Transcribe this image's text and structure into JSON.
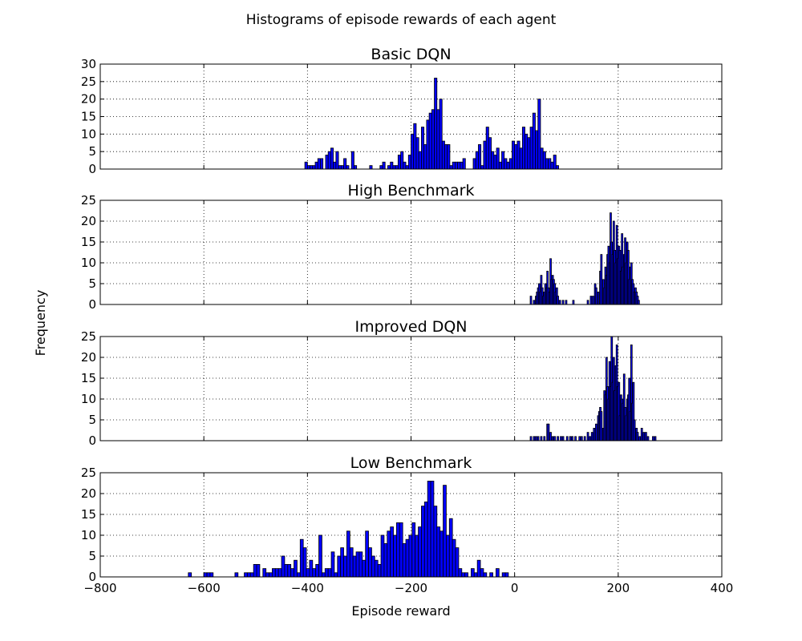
{
  "chart_data": {
    "type": "bar",
    "title": "Histograms of episode rewards of each agent",
    "xlabel": "Episode reward",
    "ylabel": "Frequency",
    "xlim": [
      -800,
      400
    ],
    "xticks": [
      "−800",
      "−600",
      "−400",
      "−200",
      "0",
      "200",
      "400"
    ],
    "xtick_values": [
      -800,
      -600,
      -400,
      -200,
      0,
      200,
      400
    ],
    "grid": true,
    "bar_color": "#0000ff",
    "subplots": [
      {
        "title": "Basic DQN",
        "ylim": [
          0,
          30
        ],
        "yticks": [
          "0",
          "5",
          "10",
          "15",
          "20",
          "25",
          "30"
        ],
        "ytick_values": [
          0,
          5,
          10,
          15,
          20,
          25,
          30
        ],
        "bin_width": 5,
        "color": "#0000ff",
        "bars": [
          [
            -405,
            2
          ],
          [
            -400,
            1
          ],
          [
            -395,
            1
          ],
          [
            -390,
            1
          ],
          [
            -385,
            2
          ],
          [
            -380,
            3
          ],
          [
            -375,
            3
          ],
          [
            -365,
            4
          ],
          [
            -360,
            5
          ],
          [
            -355,
            6
          ],
          [
            -350,
            2
          ],
          [
            -345,
            5
          ],
          [
            -340,
            1
          ],
          [
            -335,
            1
          ],
          [
            -330,
            3
          ],
          [
            -325,
            1
          ],
          [
            -315,
            5
          ],
          [
            -310,
            1
          ],
          [
            -280,
            1
          ],
          [
            -260,
            1
          ],
          [
            -255,
            2
          ],
          [
            -245,
            1
          ],
          [
            -240,
            2
          ],
          [
            -235,
            1
          ],
          [
            -230,
            1
          ],
          [
            -225,
            4
          ],
          [
            -220,
            5
          ],
          [
            -215,
            2
          ],
          [
            -210,
            1
          ],
          [
            -205,
            4
          ],
          [
            -200,
            10
          ],
          [
            -195,
            13
          ],
          [
            -190,
            9
          ],
          [
            -185,
            5
          ],
          [
            -180,
            12
          ],
          [
            -175,
            7
          ],
          [
            -170,
            14
          ],
          [
            -165,
            16
          ],
          [
            -160,
            17
          ],
          [
            -155,
            26
          ],
          [
            -150,
            17
          ],
          [
            -145,
            20
          ],
          [
            -140,
            8
          ],
          [
            -135,
            7
          ],
          [
            -130,
            7
          ],
          [
            -125,
            1
          ],
          [
            -120,
            2
          ],
          [
            -115,
            2
          ],
          [
            -110,
            2
          ],
          [
            -105,
            2
          ],
          [
            -100,
            3
          ],
          [
            -80,
            3
          ],
          [
            -75,
            5
          ],
          [
            -70,
            7
          ],
          [
            -65,
            1
          ],
          [
            -60,
            8
          ],
          [
            -55,
            12
          ],
          [
            -50,
            9
          ],
          [
            -45,
            5
          ],
          [
            -40,
            4
          ],
          [
            -35,
            6
          ],
          [
            -30,
            2
          ],
          [
            -25,
            5
          ],
          [
            -20,
            3
          ],
          [
            -15,
            2
          ],
          [
            -10,
            3
          ],
          [
            -5,
            8
          ],
          [
            0,
            7
          ],
          [
            5,
            8
          ],
          [
            10,
            6
          ],
          [
            15,
            12
          ],
          [
            20,
            10
          ],
          [
            25,
            9
          ],
          [
            30,
            12
          ],
          [
            35,
            16
          ],
          [
            40,
            11
          ],
          [
            45,
            20
          ],
          [
            50,
            6
          ],
          [
            55,
            5
          ],
          [
            60,
            3
          ],
          [
            65,
            3
          ],
          [
            70,
            2
          ],
          [
            75,
            4
          ],
          [
            80,
            1
          ]
        ]
      },
      {
        "title": "High Benchmark",
        "ylim": [
          0,
          25
        ],
        "yticks": [
          "0",
          "5",
          "10",
          "15",
          "20",
          "25"
        ],
        "ytick_values": [
          0,
          5,
          10,
          15,
          20,
          25
        ],
        "bin_width": 3,
        "color": "#0000ff",
        "bars": [
          [
            30,
            2
          ],
          [
            36,
            1
          ],
          [
            40,
            2
          ],
          [
            42,
            3
          ],
          [
            44,
            4
          ],
          [
            46,
            5
          ],
          [
            48,
            3
          ],
          [
            50,
            7
          ],
          [
            52,
            4
          ],
          [
            54,
            2
          ],
          [
            56,
            3
          ],
          [
            58,
            5
          ],
          [
            60,
            4
          ],
          [
            62,
            8
          ],
          [
            64,
            4
          ],
          [
            66,
            3
          ],
          [
            68,
            11
          ],
          [
            70,
            6
          ],
          [
            72,
            7
          ],
          [
            74,
            6
          ],
          [
            76,
            5
          ],
          [
            78,
            3
          ],
          [
            80,
            4
          ],
          [
            82,
            2
          ],
          [
            86,
            1
          ],
          [
            92,
            1
          ],
          [
            98,
            1
          ],
          [
            112,
            1
          ],
          [
            140,
            1
          ],
          [
            146,
            2
          ],
          [
            150,
            2
          ],
          [
            154,
            5
          ],
          [
            156,
            4
          ],
          [
            160,
            3
          ],
          [
            164,
            8
          ],
          [
            166,
            12
          ],
          [
            170,
            6
          ],
          [
            172,
            4
          ],
          [
            174,
            9
          ],
          [
            176,
            7
          ],
          [
            178,
            12
          ],
          [
            180,
            14
          ],
          [
            182,
            10
          ],
          [
            184,
            22
          ],
          [
            186,
            15
          ],
          [
            188,
            12
          ],
          [
            190,
            20
          ],
          [
            192,
            13
          ],
          [
            194,
            10
          ],
          [
            196,
            19
          ],
          [
            198,
            11
          ],
          [
            200,
            14
          ],
          [
            202,
            13
          ],
          [
            204,
            8
          ],
          [
            206,
            17
          ],
          [
            208,
            9
          ],
          [
            210,
            12
          ],
          [
            212,
            16
          ],
          [
            214,
            10
          ],
          [
            216,
            15
          ],
          [
            218,
            13
          ],
          [
            220,
            6
          ],
          [
            222,
            9
          ],
          [
            224,
            10
          ],
          [
            226,
            6
          ],
          [
            228,
            5
          ],
          [
            230,
            3
          ],
          [
            232,
            4
          ],
          [
            234,
            3
          ],
          [
            236,
            2
          ],
          [
            238,
            1
          ]
        ]
      },
      {
        "title": "Improved DQN",
        "ylim": [
          0,
          25
        ],
        "yticks": [
          "0",
          "5",
          "10",
          "15",
          "20",
          "25"
        ],
        "ytick_values": [
          0,
          5,
          10,
          15,
          20,
          25
        ],
        "bin_width": 3,
        "color": "#0000ff",
        "bars": [
          [
            30,
            1
          ],
          [
            36,
            1
          ],
          [
            40,
            1
          ],
          [
            44,
            1
          ],
          [
            50,
            1
          ],
          [
            56,
            1
          ],
          [
            62,
            4
          ],
          [
            64,
            4
          ],
          [
            68,
            2
          ],
          [
            72,
            1
          ],
          [
            76,
            1
          ],
          [
            82,
            1
          ],
          [
            88,
            1
          ],
          [
            92,
            1
          ],
          [
            100,
            1
          ],
          [
            106,
            1
          ],
          [
            110,
            1
          ],
          [
            116,
            1
          ],
          [
            124,
            1
          ],
          [
            128,
            1
          ],
          [
            134,
            1
          ],
          [
            140,
            2
          ],
          [
            144,
            1
          ],
          [
            148,
            2
          ],
          [
            152,
            3
          ],
          [
            156,
            4
          ],
          [
            160,
            6
          ],
          [
            162,
            7
          ],
          [
            164,
            8
          ],
          [
            166,
            7
          ],
          [
            170,
            3
          ],
          [
            172,
            12
          ],
          [
            174,
            11
          ],
          [
            176,
            20
          ],
          [
            178,
            13
          ],
          [
            180,
            10
          ],
          [
            182,
            19
          ],
          [
            184,
            13
          ],
          [
            186,
            25
          ],
          [
            188,
            14
          ],
          [
            190,
            20
          ],
          [
            192,
            12
          ],
          [
            194,
            18
          ],
          [
            196,
            23
          ],
          [
            198,
            13
          ],
          [
            200,
            14
          ],
          [
            202,
            6
          ],
          [
            204,
            11
          ],
          [
            206,
            10
          ],
          [
            208,
            9
          ],
          [
            210,
            16
          ],
          [
            212,
            8
          ],
          [
            214,
            6
          ],
          [
            216,
            10
          ],
          [
            218,
            11
          ],
          [
            220,
            15
          ],
          [
            222,
            7
          ],
          [
            224,
            23
          ],
          [
            226,
            9
          ],
          [
            228,
            14
          ],
          [
            230,
            5
          ],
          [
            234,
            3
          ],
          [
            236,
            2
          ],
          [
            240,
            1
          ],
          [
            244,
            3
          ],
          [
            248,
            2
          ],
          [
            252,
            2
          ],
          [
            256,
            1
          ],
          [
            266,
            1
          ],
          [
            270,
            1
          ]
        ]
      },
      {
        "title": "Low Benchmark",
        "ylim": [
          0,
          25
        ],
        "yticks": [
          "0",
          "5",
          "10",
          "15",
          "20",
          "25"
        ],
        "ytick_values": [
          0,
          5,
          10,
          15,
          20,
          25
        ],
        "bin_width": 6,
        "color": "#0000ff",
        "bars": [
          [
            -630,
            1
          ],
          [
            -600,
            1
          ],
          [
            -594,
            1
          ],
          [
            -588,
            1
          ],
          [
            -540,
            1
          ],
          [
            -522,
            1
          ],
          [
            -516,
            1
          ],
          [
            -510,
            1
          ],
          [
            -504,
            3
          ],
          [
            -498,
            3
          ],
          [
            -486,
            2
          ],
          [
            -480,
            1
          ],
          [
            -474,
            1
          ],
          [
            -468,
            2
          ],
          [
            -462,
            2
          ],
          [
            -456,
            2
          ],
          [
            -450,
            5
          ],
          [
            -444,
            3
          ],
          [
            -438,
            3
          ],
          [
            -432,
            2
          ],
          [
            -426,
            4
          ],
          [
            -420,
            1
          ],
          [
            -414,
            9
          ],
          [
            -408,
            7
          ],
          [
            -402,
            2
          ],
          [
            -396,
            4
          ],
          [
            -390,
            2
          ],
          [
            -384,
            3
          ],
          [
            -378,
            10
          ],
          [
            -372,
            1
          ],
          [
            -366,
            2
          ],
          [
            -360,
            2
          ],
          [
            -354,
            6
          ],
          [
            -348,
            1
          ],
          [
            -342,
            5
          ],
          [
            -336,
            7
          ],
          [
            -330,
            5
          ],
          [
            -324,
            11
          ],
          [
            -318,
            7
          ],
          [
            -312,
            5
          ],
          [
            -306,
            6
          ],
          [
            -300,
            6
          ],
          [
            -294,
            4
          ],
          [
            -288,
            11
          ],
          [
            -282,
            7
          ],
          [
            -276,
            5
          ],
          [
            -270,
            4
          ],
          [
            -264,
            3
          ],
          [
            -258,
            10
          ],
          [
            -252,
            8
          ],
          [
            -246,
            11
          ],
          [
            -240,
            12
          ],
          [
            -234,
            10
          ],
          [
            -228,
            13
          ],
          [
            -222,
            13
          ],
          [
            -216,
            8
          ],
          [
            -210,
            9
          ],
          [
            -204,
            10
          ],
          [
            -198,
            13
          ],
          [
            -192,
            10
          ],
          [
            -186,
            12
          ],
          [
            -180,
            17
          ],
          [
            -174,
            18
          ],
          [
            -168,
            23
          ],
          [
            -162,
            23
          ],
          [
            -156,
            17
          ],
          [
            -150,
            12
          ],
          [
            -144,
            11
          ],
          [
            -138,
            22
          ],
          [
            -132,
            10
          ],
          [
            -126,
            14
          ],
          [
            -120,
            9
          ],
          [
            -114,
            7
          ],
          [
            -108,
            2
          ],
          [
            -102,
            1
          ],
          [
            -96,
            1
          ],
          [
            -84,
            2
          ],
          [
            -78,
            1
          ],
          [
            -72,
            4
          ],
          [
            -66,
            2
          ],
          [
            -60,
            1
          ],
          [
            -48,
            1
          ],
          [
            -36,
            2
          ],
          [
            -24,
            1
          ],
          [
            -18,
            1
          ]
        ]
      }
    ]
  }
}
